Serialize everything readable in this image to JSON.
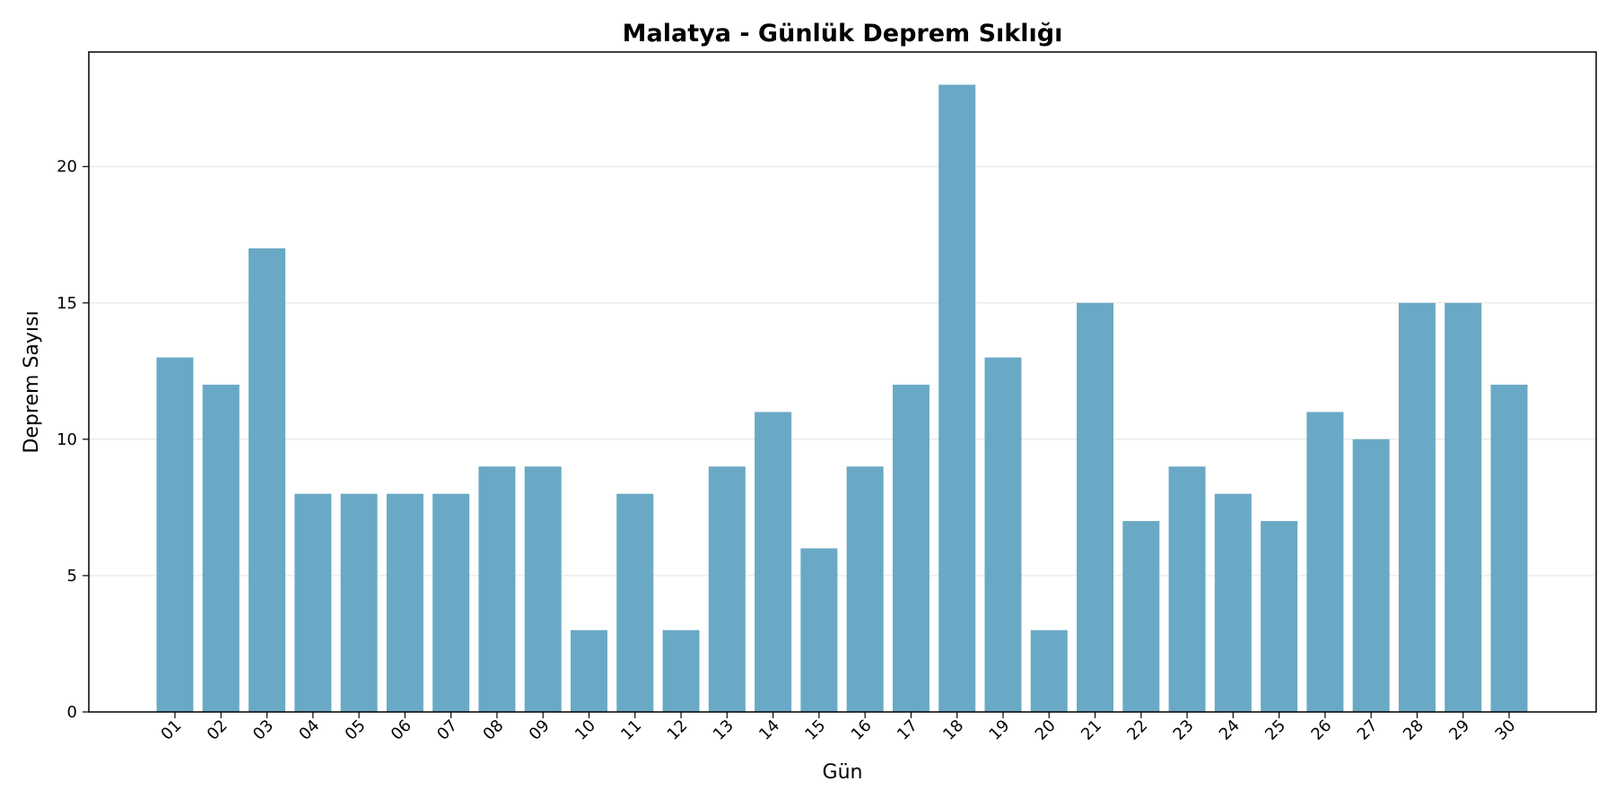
{
  "chart_data": {
    "type": "bar",
    "title": "Malatya - Günlük Deprem Sıklığı",
    "xlabel": "Gün",
    "ylabel": "Deprem Sayısı",
    "categories": [
      "01",
      "02",
      "03",
      "04",
      "05",
      "06",
      "07",
      "08",
      "09",
      "10",
      "11",
      "12",
      "13",
      "14",
      "15",
      "16",
      "17",
      "18",
      "19",
      "20",
      "21",
      "22",
      "23",
      "24",
      "25",
      "26",
      "27",
      "28",
      "29",
      "30"
    ],
    "values": [
      13,
      12,
      17,
      8,
      8,
      8,
      8,
      9,
      9,
      3,
      8,
      3,
      9,
      11,
      6,
      9,
      12,
      23,
      13,
      3,
      15,
      7,
      9,
      8,
      7,
      11,
      10,
      15,
      15,
      12
    ],
    "ylim": [
      0,
      24.2
    ],
    "yticks": [
      0,
      5,
      10,
      15,
      20
    ],
    "bar_color": "#6aa9c5",
    "grid": "horizontal",
    "legend": "none"
  }
}
